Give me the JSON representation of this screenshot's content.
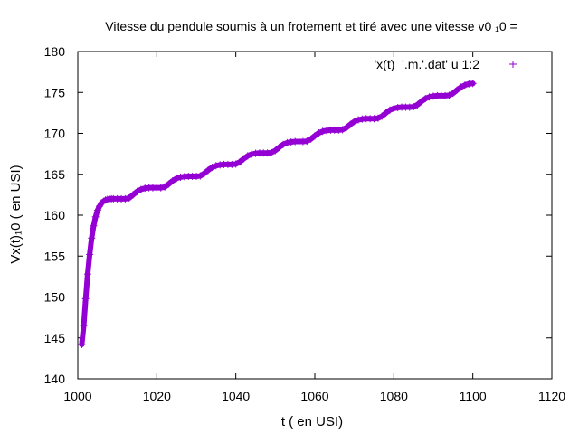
{
  "chart_data": {
    "type": "scatter",
    "title": "Vitesse du pendule soumis à un frotement et tiré avec une vitesse v0 ₁0 =",
    "xlabel": "t ( en USI)",
    "ylabel": "Vx(t)₁0 ( en USI)",
    "xlim": [
      1000,
      1120
    ],
    "ylim": [
      140,
      180
    ],
    "xticks": [
      1000,
      1020,
      1040,
      1060,
      1080,
      1100,
      1120
    ],
    "yticks": [
      140,
      145,
      150,
      155,
      160,
      165,
      170,
      175,
      180
    ],
    "grid": false,
    "legend": "top-right",
    "series": [
      {
        "name": "'x(t)_'.m.'.dat' u 1:2",
        "color": "#9400d3",
        "marker": "plus",
        "x": [
          1001,
          1001.5,
          1002,
          1002.5,
          1003,
          1003.5,
          1004,
          1004.5,
          1005,
          1005.5,
          1006,
          1006.5,
          1007,
          1007.5,
          1008,
          1008.5,
          1009,
          1010,
          1011,
          1012,
          1013,
          1014,
          1015,
          1016,
          1017,
          1018,
          1019,
          1020,
          1021,
          1022,
          1023,
          1024,
          1025,
          1026,
          1027,
          1028,
          1029,
          1030,
          1031,
          1032,
          1033,
          1034,
          1035,
          1036,
          1037,
          1038,
          1039,
          1040,
          1041,
          1042,
          1043,
          1044,
          1045,
          1046,
          1047,
          1048,
          1049,
          1050,
          1051,
          1052,
          1053,
          1054,
          1055,
          1056,
          1057,
          1058,
          1059,
          1060,
          1061,
          1062,
          1063,
          1064,
          1065,
          1066,
          1067,
          1068,
          1069,
          1070,
          1071,
          1072,
          1073,
          1074,
          1075,
          1076,
          1077,
          1078,
          1079,
          1080,
          1081,
          1082,
          1083,
          1084,
          1085,
          1086,
          1087,
          1088,
          1089,
          1090,
          1091,
          1092,
          1093,
          1094,
          1095,
          1096,
          1097,
          1098,
          1099,
          1100
        ],
        "y": [
          144.2,
          146.5,
          149.8,
          152.8,
          155.2,
          157.2,
          158.7,
          159.8,
          160.6,
          161.1,
          161.5,
          161.7,
          161.85,
          161.93,
          161.98,
          162.0,
          162.0,
          162.0,
          162.0,
          162.0,
          162.1,
          162.5,
          162.9,
          163.15,
          163.3,
          163.35,
          163.35,
          163.35,
          163.35,
          163.45,
          163.8,
          164.2,
          164.5,
          164.65,
          164.72,
          164.75,
          164.75,
          164.75,
          164.8,
          165.1,
          165.5,
          165.85,
          166.05,
          166.15,
          166.2,
          166.2,
          166.2,
          166.25,
          166.5,
          166.9,
          167.25,
          167.45,
          167.55,
          167.6,
          167.6,
          167.6,
          167.65,
          167.9,
          168.3,
          168.65,
          168.85,
          168.95,
          169.0,
          169.0,
          169.0,
          169.05,
          169.3,
          169.7,
          170.05,
          170.25,
          170.35,
          170.4,
          170.4,
          170.4,
          170.45,
          170.7,
          171.1,
          171.45,
          171.65,
          171.75,
          171.8,
          171.8,
          171.8,
          171.85,
          172.1,
          172.5,
          172.85,
          173.05,
          173.15,
          173.2,
          173.2,
          173.2,
          173.25,
          173.5,
          173.9,
          174.25,
          174.45,
          174.55,
          174.6,
          174.6,
          174.6,
          174.65,
          174.9,
          175.3,
          175.65,
          175.9,
          176.05,
          176.1
        ]
      }
    ]
  }
}
